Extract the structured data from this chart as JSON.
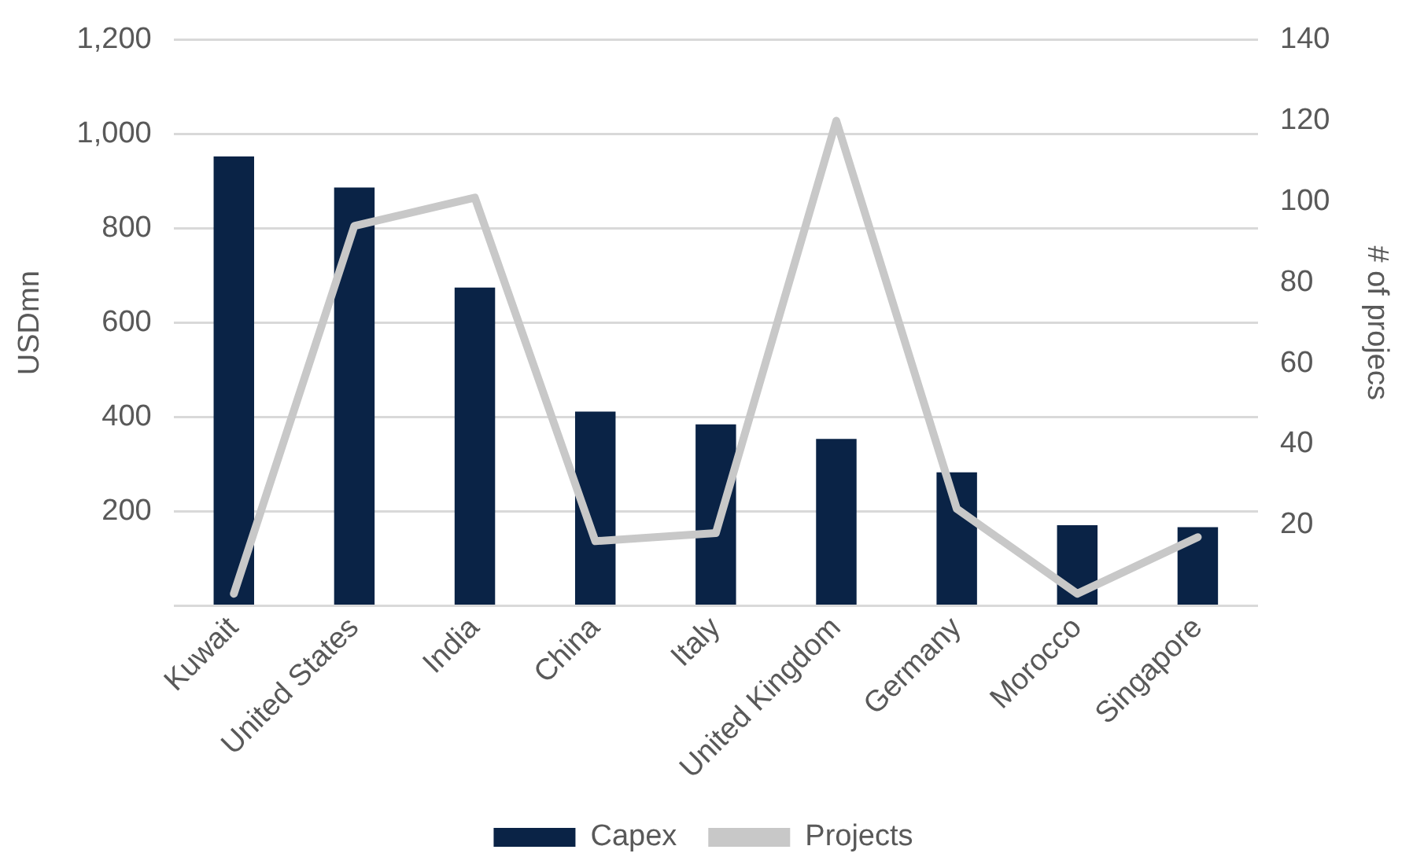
{
  "chart_data": {
    "type": "bar",
    "ylabel": "USDmn",
    "y2label": "# of projecs",
    "categories": [
      "Kuwait",
      "United States",
      "India",
      "China",
      "Italy",
      "United Kingdom",
      "Germany",
      "Morocco",
      "Singapore"
    ],
    "series": [
      {
        "name": "Capex",
        "color": "#0a2346",
        "values": [
          953,
          887,
          675,
          412,
          385,
          354,
          283,
          171,
          167
        ]
      },
      {
        "name": "Projects",
        "type": "line",
        "axis": "y2",
        "color": "#c8c8c8",
        "values": [
          3,
          94,
          101,
          16,
          18,
          120,
          24,
          3,
          17
        ]
      }
    ],
    "ylim": [
      0,
      1200
    ],
    "yticks": [
      {
        "value": 0,
        "label": null
      },
      200,
      400,
      600,
      800,
      {
        "value": 1000,
        "label": "1,000"
      },
      {
        "value": 1200,
        "label": "1,200"
      }
    ],
    "y2lim": [
      0,
      140
    ],
    "y2ticks": [
      20,
      40,
      60,
      80,
      100,
      120,
      140
    ],
    "grid": "y",
    "legend": "bottom",
    "marker": "none",
    "line_style": "solid"
  }
}
